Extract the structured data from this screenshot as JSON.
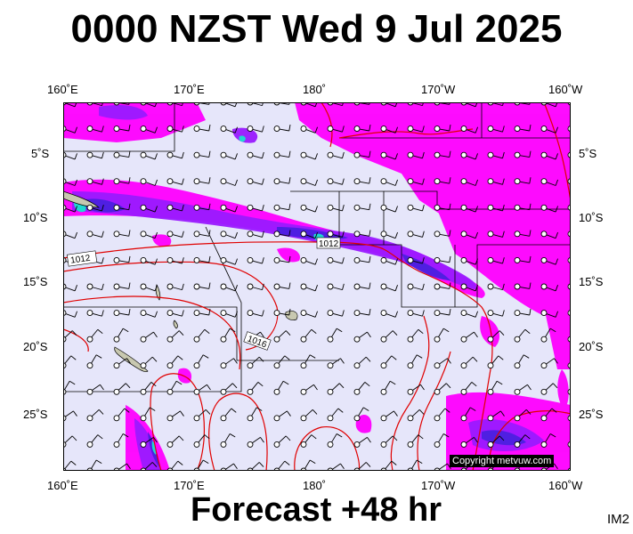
{
  "title": "0000 NZST Wed 9 Jul 2025",
  "subtitle": "Forecast +48 hr",
  "image_code": "IM2",
  "copyright": "Copyright metvuw.com",
  "axes": {
    "top_lon_labels": [
      "160˚E",
      "170˚E",
      "180˚",
      "170˚W",
      "160˚W"
    ],
    "bottom_lon_labels": [
      "160˚E",
      "170˚E",
      "180˚",
      "170˚W",
      "160˚W"
    ],
    "left_lat_labels": [
      "5˚S",
      "10˚S",
      "15˚S",
      "20˚S",
      "25˚S"
    ],
    "right_lat_labels": [
      "5˚S",
      "10˚S",
      "15˚S",
      "20˚S",
      "25˚S"
    ]
  },
  "isobar_labels": [
    "1012",
    "1012",
    "1016"
  ],
  "colors": {
    "ocean": "#e6e6fa",
    "rain_light": "#ff00ff",
    "rain_medium": "#9a1aff",
    "rain_heavy": "#4b20e0",
    "rain_extreme": "#20d8d0",
    "isobar": "#e00000",
    "land": "#c8c8b0"
  }
}
